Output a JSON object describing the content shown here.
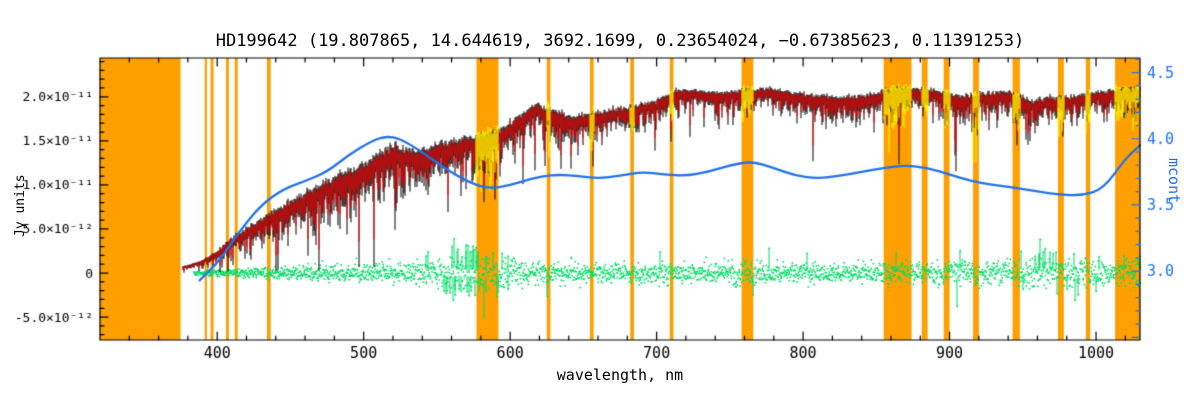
{
  "colors": {
    "background": "#ffffff",
    "axis": "#000000",
    "masked_band": "#ffa000",
    "observed_spectrum": "#000000",
    "fitted_spectrum": "#ff0000",
    "masked_flux": "#ffff00",
    "residual": "#00dd66",
    "continuum": "#2273e8"
  },
  "chart_data": {
    "type": "line",
    "title": "HD199642  (19.807865, 14.644619, 3692.1699, 0.23654024, −0.67385623, 0.11391253)",
    "star_id": "HD199642",
    "title_params": [
      19.807865,
      14.644619,
      3692.1699,
      0.23654024,
      -0.67385623,
      0.11391253
    ],
    "xlabel": "wavelength, nm",
    "ylabel_left": "Jy units",
    "ylabel_right": "mcont",
    "xlim": [
      320,
      1030
    ],
    "ylim_left": [
      -7.6e-12,
      2.44e-11
    ],
    "ylim_right": [
      2.48,
      4.61
    ],
    "grid": false,
    "legend_position": "none",
    "series_colors": {
      "observed_spectrum": "black",
      "fitted_spectrum": "red",
      "masked_flux": "yellow",
      "residual": "green",
      "continuum_mcont": "blue",
      "masked_regions": "orange"
    },
    "x_ticks": [
      {
        "value": 400,
        "label": "400"
      },
      {
        "value": 500,
        "label": "500"
      },
      {
        "value": 600,
        "label": "600"
      },
      {
        "value": 700,
        "label": "700"
      },
      {
        "value": 800,
        "label": "800"
      },
      {
        "value": 900,
        "label": "900"
      },
      {
        "value": 1000,
        "label": "1000"
      }
    ],
    "y_ticks_left": [
      {
        "value": 2e-11,
        "label": "2.0×10⁻¹¹"
      },
      {
        "value": 1.5e-11,
        "label": "1.5×10⁻¹¹"
      },
      {
        "value": 1e-11,
        "label": "1.0×10⁻¹¹"
      },
      {
        "value": 5e-12,
        "label": "5.0×10⁻¹²"
      },
      {
        "value": 0,
        "label": "0"
      },
      {
        "value": -5e-12,
        "label": "-5.0×10⁻¹²"
      }
    ],
    "y_ticks_right": [
      {
        "value": 4.5,
        "label": "4.5"
      },
      {
        "value": 4.0,
        "label": "4.0"
      },
      {
        "value": 3.5,
        "label": "3.5"
      },
      {
        "value": 3.0,
        "label": "3.0"
      }
    ],
    "masked_regions_nm": [
      [
        320,
        375
      ],
      [
        391.5,
        393
      ],
      [
        395.5,
        397.5
      ],
      [
        406,
        408
      ],
      [
        412,
        414
      ],
      [
        434,
        436.5
      ],
      [
        577,
        592
      ],
      [
        625,
        627.5
      ],
      [
        654.5,
        657
      ],
      [
        682,
        684.5
      ],
      [
        709,
        711.5
      ],
      [
        758,
        766
      ],
      [
        855,
        874
      ],
      [
        881,
        885
      ],
      [
        896,
        900
      ],
      [
        916,
        920
      ],
      [
        943,
        948
      ],
      [
        974,
        978
      ],
      [
        993,
        996
      ],
      [
        1013,
        1030
      ]
    ],
    "spectrum_envelope": {
      "wavelength_nm": [
        378,
        386,
        394,
        402,
        412,
        424,
        436,
        450,
        465,
        480,
        495,
        510,
        522,
        535,
        548,
        562,
        577,
        592,
        606,
        618,
        632,
        645,
        658,
        672,
        686,
        700,
        715,
        730,
        745,
        760,
        775,
        790,
        805,
        820,
        835,
        850,
        865,
        880,
        895,
        910,
        925,
        940,
        955,
        970,
        985,
        1000,
        1015,
        1030
      ],
      "flux_top": [
        8e-13,
        1.2e-12,
        1.8e-12,
        2.8e-12,
        4.2e-12,
        5.5e-12,
        6.8e-12,
        8.2e-12,
        9.5e-12,
        1.08e-11,
        1.2e-11,
        1.35e-11,
        1.45e-11,
        1.38e-11,
        1.45e-11,
        1.52e-11,
        1.55e-11,
        1.62e-11,
        1.78e-11,
        1.92e-11,
        1.82e-11,
        1.78e-11,
        1.82e-11,
        1.86e-11,
        1.9e-11,
        1.96e-11,
        2.08e-11,
        2.06e-11,
        2.04e-11,
        2.08e-11,
        2.1e-11,
        2.06e-11,
        2.02e-11,
        2e-11,
        2e-11,
        2.04e-11,
        2.1e-11,
        2.1e-11,
        2.05e-11,
        2e-11,
        2.04e-11,
        2.06e-11,
        1.96e-11,
        2e-11,
        2e-11,
        2.05e-11,
        2.08e-11,
        2.1e-11
      ],
      "absorption_depth": [
        6e-13,
        8e-13,
        1.2e-12,
        1.8e-12,
        2.5e-12,
        3e-12,
        3.8e-12,
        4.5e-12,
        5e-12,
        5.5e-12,
        5.8e-12,
        6e-12,
        5.8e-12,
        5.2e-12,
        5e-12,
        5.2e-12,
        4.8e-12,
        4.5e-12,
        4e-12,
        3.5e-12,
        4.2e-12,
        3.8e-12,
        3.5e-12,
        3.2e-12,
        3.2e-12,
        3e-12,
        2.8e-12,
        2.6e-12,
        2.6e-12,
        3e-12,
        2.6e-12,
        3e-12,
        3.2e-12,
        3.2e-12,
        3e-12,
        3.4e-12,
        3.6e-12,
        3e-12,
        3e-12,
        3.4e-12,
        3e-12,
        3.4e-12,
        3.6e-12,
        3e-12,
        3e-12,
        3e-12,
        3e-12,
        3e-12
      ]
    },
    "continuum_mcont": {
      "wavelength_nm": [
        388,
        400,
        415,
        430,
        445,
        460,
        475,
        490,
        505,
        515,
        525,
        540,
        555,
        570,
        585,
        600,
        615,
        630,
        645,
        660,
        675,
        690,
        705,
        720,
        735,
        750,
        765,
        780,
        795,
        810,
        825,
        840,
        855,
        870,
        885,
        900,
        915,
        930,
        945,
        960,
        975,
        990,
        1005,
        1020,
        1030
      ],
      "value": [
        2.93,
        3.05,
        3.3,
        3.5,
        3.62,
        3.68,
        3.75,
        3.88,
        3.98,
        4.02,
        4.0,
        3.9,
        3.78,
        3.68,
        3.62,
        3.65,
        3.7,
        3.73,
        3.72,
        3.7,
        3.72,
        3.75,
        3.73,
        3.72,
        3.75,
        3.8,
        3.83,
        3.78,
        3.72,
        3.7,
        3.72,
        3.75,
        3.78,
        3.8,
        3.78,
        3.73,
        3.68,
        3.65,
        3.63,
        3.6,
        3.58,
        3.57,
        3.62,
        3.85,
        3.95
      ]
    },
    "residual_amplitude": {
      "wavelength_nm": [
        388,
        410,
        435,
        460,
        485,
        510,
        535,
        552,
        565,
        578,
        590,
        605,
        625,
        650,
        675,
        700,
        725,
        748,
        760,
        772,
        800,
        830,
        860,
        890,
        915,
        940,
        965,
        990,
        1010,
        1030
      ],
      "amplitude": [
        3e-13,
        5e-13,
        6e-13,
        8e-13,
        9e-13,
        1.1e-12,
        1.3e-12,
        2e-12,
        2.8e-12,
        3.2e-12,
        2.2e-12,
        1.5e-12,
        1.2e-12,
        1e-12,
        1e-12,
        1.2e-12,
        1e-12,
        1.2e-12,
        2.2e-12,
        1.2e-12,
        1.1e-12,
        1e-12,
        1.3e-12,
        1.2e-12,
        1.4e-12,
        1.6e-12,
        1.8e-12,
        1.8e-12,
        1.4e-12,
        1.8e-12
      ]
    }
  }
}
